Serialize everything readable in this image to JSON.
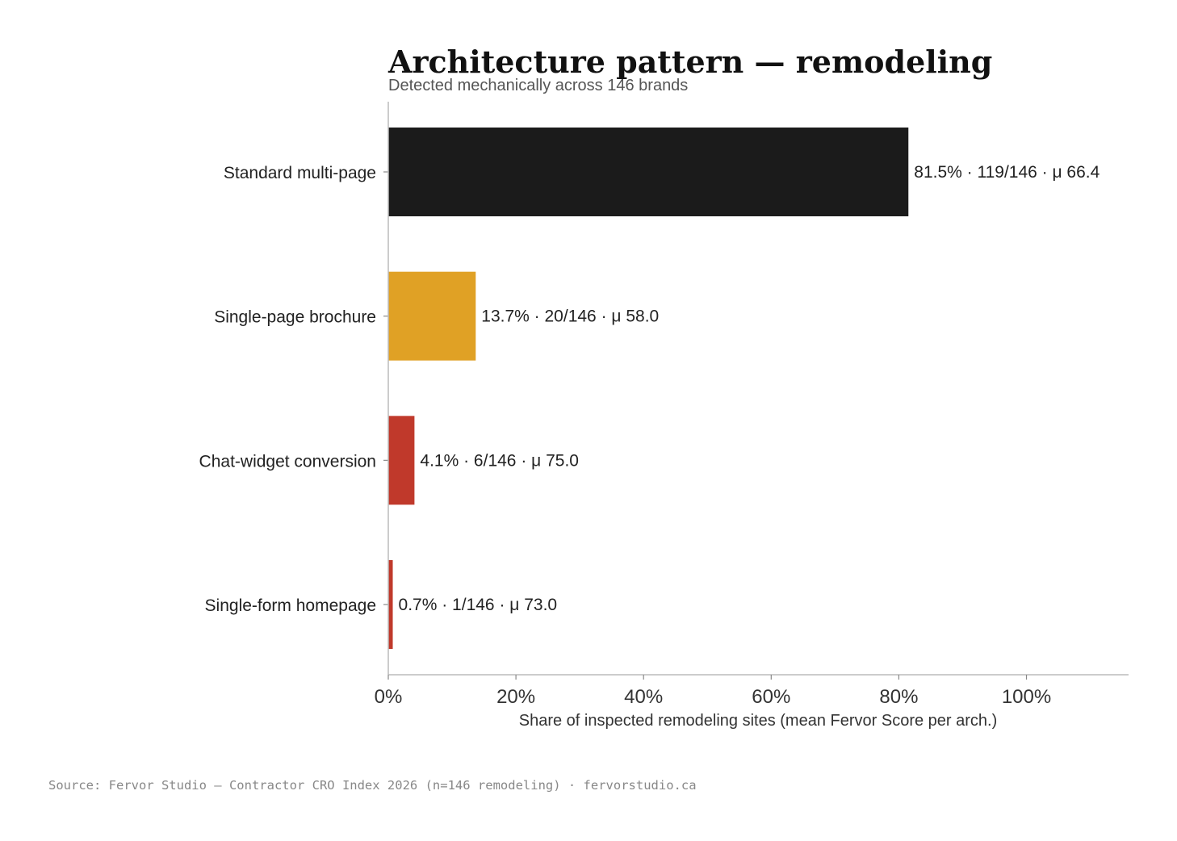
{
  "chart_data": {
    "type": "bar",
    "orientation": "horizontal",
    "title": "Architecture pattern — remodeling",
    "subtitle": "Detected mechanically across 146 brands",
    "xlabel": "Share of inspected remodeling sites (mean Fervor Score per arch.)",
    "ylabel": "",
    "xlim": [
      0,
      116
    ],
    "x_ticks": [
      0,
      20,
      40,
      60,
      80,
      100
    ],
    "x_tick_labels": [
      "0%",
      "20%",
      "40%",
      "60%",
      "80%",
      "100%"
    ],
    "categories": [
      "Standard multi-page",
      "Single-page brochure",
      "Chat-widget conversion",
      "Single-form homepage"
    ],
    "values": [
      81.5,
      13.7,
      4.1,
      0.7
    ],
    "bar_labels": [
      "81.5% · 119/146 · μ 66.4",
      "13.7% · 20/146 · μ 58.0",
      "4.1% · 6/146 · μ 75.0",
      "0.7% · 1/146 · μ 73.0"
    ],
    "colors": [
      "#1b1b1b",
      "#e0a125",
      "#c0392b",
      "#c0392b"
    ],
    "grid": false,
    "legend": "none"
  },
  "source": "Source: Fervor Studio — Contractor CRO Index 2026 (n=146 remodeling) · fervorstudio.ca"
}
